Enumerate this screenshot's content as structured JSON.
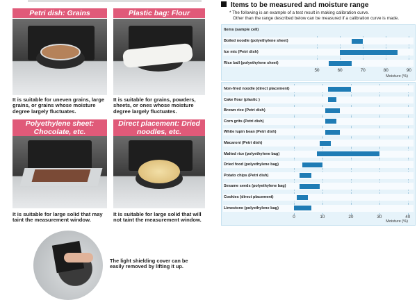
{
  "panels": [
    {
      "title": "Petri dish: Grains",
      "caption": "It is suitable for uneven grains, large grains, or grains whose moisture degree largely fluctuates."
    },
    {
      "title": "Plastic bag: Flour",
      "caption": "It is suitable for grains, powders, sheets, or ones whose moisture degree largely fluctuates."
    },
    {
      "title": "Polyethylene sheet: Chocolate, etc.",
      "caption": "It is suitable for large solid that may taint the measurement window."
    },
    {
      "title": "Direct placement: Dried noodles, etc.",
      "caption": "It is suitable for large solid that will not taint the measurement window."
    }
  ],
  "shield_caption": "The light shielding cover can be easily removed by lifting it up.",
  "section": {
    "title": "Items to be measured and moisture range",
    "note_line1": "* The following is an example of a test result in making calibration curve.",
    "note_line2": "Other than the range described below can be measured if a calibration curve is made."
  },
  "colors": {
    "accent_pink": "#e05a79",
    "bar_blue": "#1f7cb5",
    "chart_bg": "#e6f3fa"
  },
  "chart_data": [
    {
      "type": "bar",
      "orientation": "horizontal-range",
      "header": "Items (sample cell)",
      "xlabel": "Moisture (%)",
      "xlim": [
        40,
        92
      ],
      "xticks": [
        50,
        60,
        70,
        80,
        90
      ],
      "categories": [
        "Boiled noodle (polyethylene sheet)",
        "Ice mix (Petri dish)",
        "Rice ball (polyethylene sheet)"
      ],
      "ranges": [
        [
          65,
          70
        ],
        [
          60,
          85
        ],
        [
          55,
          65
        ]
      ]
    },
    {
      "type": "bar",
      "orientation": "horizontal-range",
      "header": "",
      "xlabel": "Moisture (%)",
      "xlim": [
        0,
        42
      ],
      "xticks": [
        0,
        10,
        20,
        30,
        40
      ],
      "categories": [
        "Non-fried noodle (direct placement)",
        "Cake flour (plastic )",
        "Brown rice (Petri dish)",
        "Corn grits (Petri dish)",
        "White lupin bean (Petri dish)",
        "Macaroni (Petri dish)",
        "Malted rice (polyethylene bag)",
        "Dried food (polyethylene bag)",
        "Potato chips (Petri dish)",
        "Sesame seeds (polyethylene bag)",
        "Cookies (direct placement)",
        "Limestone (polyethylene bag)"
      ],
      "ranges": [
        [
          12,
          20
        ],
        [
          12,
          15
        ],
        [
          11,
          16
        ],
        [
          11,
          15
        ],
        [
          11,
          16
        ],
        [
          9,
          13
        ],
        [
          8,
          30
        ],
        [
          3,
          10
        ],
        [
          2,
          6
        ],
        [
          2,
          9
        ],
        [
          1,
          5
        ],
        [
          0,
          6
        ]
      ]
    }
  ]
}
